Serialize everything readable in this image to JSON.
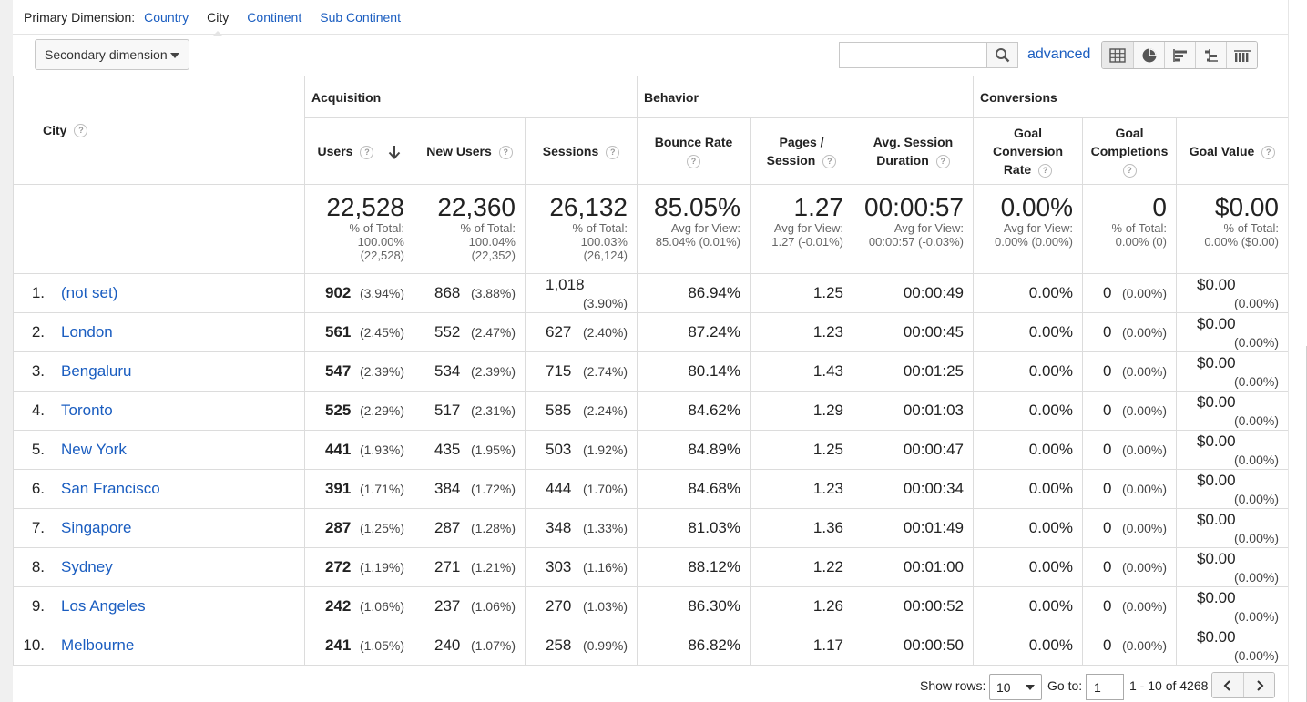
{
  "dimension_bar": {
    "label": "Primary Dimension:",
    "options": [
      "Country",
      "City",
      "Continent",
      "Sub Continent"
    ],
    "selected": "City"
  },
  "toolbar": {
    "secondary_dimension": "Secondary dimension",
    "search_value": "",
    "advanced_label": "advanced",
    "view_icons": [
      "table-view-icon",
      "pie-view-icon",
      "performance-view-icon",
      "comparison-view-icon",
      "pivot-view-icon"
    ]
  },
  "table": {
    "groups": {
      "acquisition": "Acquisition",
      "behavior": "Behavior",
      "conversions": "Conversions"
    },
    "columns": {
      "city": "City",
      "users": "Users",
      "new_users": "New Users",
      "sessions": "Sessions",
      "bounce_rate_1": "Bounce Rate",
      "pages_1": "Pages /",
      "pages_2": "Session",
      "duration_1": "Avg. Session",
      "duration_2": "Duration",
      "gcr_1": "Goal",
      "gcr_2": "Conversion",
      "gcr_3": "Rate",
      "gc_1": "Goal",
      "gc_2": "Completions",
      "goal_value": "Goal Value"
    },
    "totals": {
      "users": {
        "big": "22,528",
        "l1": "% of Total:",
        "l2": "100.00%",
        "l3": "(22,528)"
      },
      "new_users": {
        "big": "22,360",
        "l1": "% of Total:",
        "l2": "100.04%",
        "l3": "(22,352)"
      },
      "sessions": {
        "big": "26,132",
        "l1": "% of Total:",
        "l2": "100.03%",
        "l3": "(26,124)"
      },
      "bounce_rate": {
        "big": "85.05%",
        "l1": "Avg for View:",
        "l2": "85.04% (0.01%)"
      },
      "pages": {
        "big": "1.27",
        "l1": "Avg for View:",
        "l2": "1.27 (-0.01%)"
      },
      "duration": {
        "big": "00:00:57",
        "l1": "Avg for View:",
        "l2": "00:00:57 (-0.03%)"
      },
      "gcr": {
        "big": "0.00%",
        "l1": "Avg for View:",
        "l2": "0.00% (0.00%)"
      },
      "gc": {
        "big": "0",
        "l1": "% of Total:",
        "l2": "0.00% (0)"
      },
      "goal_value": {
        "big": "$0.00",
        "l1": "% of Total:",
        "l2": "0.00% ($0.00)"
      }
    },
    "rows": [
      {
        "idx": "1.",
        "city": "(not set)",
        "users": "902",
        "users_pct": "(3.94%)",
        "new_users": "868",
        "new_users_pct": "(3.88%)",
        "sessions": "1,018",
        "sessions_pct": "(3.90%)",
        "bounce": "86.94%",
        "pages": "1.25",
        "duration": "00:00:49",
        "gcr": "0.00%",
        "gc": "0",
        "gc_pct": "(0.00%)",
        "gv": "$0.00",
        "gv_pct": "(0.00%)"
      },
      {
        "idx": "2.",
        "city": "London",
        "users": "561",
        "users_pct": "(2.45%)",
        "new_users": "552",
        "new_users_pct": "(2.47%)",
        "sessions": "627",
        "sessions_pct": "(2.40%)",
        "bounce": "87.24%",
        "pages": "1.23",
        "duration": "00:00:45",
        "gcr": "0.00%",
        "gc": "0",
        "gc_pct": "(0.00%)",
        "gv": "$0.00",
        "gv_pct": "(0.00%)"
      },
      {
        "idx": "3.",
        "city": "Bengaluru",
        "users": "547",
        "users_pct": "(2.39%)",
        "new_users": "534",
        "new_users_pct": "(2.39%)",
        "sessions": "715",
        "sessions_pct": "(2.74%)",
        "bounce": "80.14%",
        "pages": "1.43",
        "duration": "00:01:25",
        "gcr": "0.00%",
        "gc": "0",
        "gc_pct": "(0.00%)",
        "gv": "$0.00",
        "gv_pct": "(0.00%)"
      },
      {
        "idx": "4.",
        "city": "Toronto",
        "users": "525",
        "users_pct": "(2.29%)",
        "new_users": "517",
        "new_users_pct": "(2.31%)",
        "sessions": "585",
        "sessions_pct": "(2.24%)",
        "bounce": "84.62%",
        "pages": "1.29",
        "duration": "00:01:03",
        "gcr": "0.00%",
        "gc": "0",
        "gc_pct": "(0.00%)",
        "gv": "$0.00",
        "gv_pct": "(0.00%)"
      },
      {
        "idx": "5.",
        "city": "New York",
        "users": "441",
        "users_pct": "(1.93%)",
        "new_users": "435",
        "new_users_pct": "(1.95%)",
        "sessions": "503",
        "sessions_pct": "(1.92%)",
        "bounce": "84.89%",
        "pages": "1.25",
        "duration": "00:00:47",
        "gcr": "0.00%",
        "gc": "0",
        "gc_pct": "(0.00%)",
        "gv": "$0.00",
        "gv_pct": "(0.00%)"
      },
      {
        "idx": "6.",
        "city": "San Francisco",
        "users": "391",
        "users_pct": "(1.71%)",
        "new_users": "384",
        "new_users_pct": "(1.72%)",
        "sessions": "444",
        "sessions_pct": "(1.70%)",
        "bounce": "84.68%",
        "pages": "1.23",
        "duration": "00:00:34",
        "gcr": "0.00%",
        "gc": "0",
        "gc_pct": "(0.00%)",
        "gv": "$0.00",
        "gv_pct": "(0.00%)"
      },
      {
        "idx": "7.",
        "city": "Singapore",
        "users": "287",
        "users_pct": "(1.25%)",
        "new_users": "287",
        "new_users_pct": "(1.28%)",
        "sessions": "348",
        "sessions_pct": "(1.33%)",
        "bounce": "81.03%",
        "pages": "1.36",
        "duration": "00:01:49",
        "gcr": "0.00%",
        "gc": "0",
        "gc_pct": "(0.00%)",
        "gv": "$0.00",
        "gv_pct": "(0.00%)"
      },
      {
        "idx": "8.",
        "city": "Sydney",
        "users": "272",
        "users_pct": "(1.19%)",
        "new_users": "271",
        "new_users_pct": "(1.21%)",
        "sessions": "303",
        "sessions_pct": "(1.16%)",
        "bounce": "88.12%",
        "pages": "1.22",
        "duration": "00:01:00",
        "gcr": "0.00%",
        "gc": "0",
        "gc_pct": "(0.00%)",
        "gv": "$0.00",
        "gv_pct": "(0.00%)"
      },
      {
        "idx": "9.",
        "city": "Los Angeles",
        "users": "242",
        "users_pct": "(1.06%)",
        "new_users": "237",
        "new_users_pct": "(1.06%)",
        "sessions": "270",
        "sessions_pct": "(1.03%)",
        "bounce": "86.30%",
        "pages": "1.26",
        "duration": "00:00:52",
        "gcr": "0.00%",
        "gc": "0",
        "gc_pct": "(0.00%)",
        "gv": "$0.00",
        "gv_pct": "(0.00%)"
      },
      {
        "idx": "10.",
        "city": "Melbourne",
        "users": "241",
        "users_pct": "(1.05%)",
        "new_users": "240",
        "new_users_pct": "(1.07%)",
        "sessions": "258",
        "sessions_pct": "(0.99%)",
        "bounce": "86.82%",
        "pages": "1.17",
        "duration": "00:00:50",
        "gcr": "0.00%",
        "gc": "0",
        "gc_pct": "(0.00%)",
        "gv": "$0.00",
        "gv_pct": "(0.00%)"
      }
    ]
  },
  "footer": {
    "show_rows_label": "Show rows:",
    "show_rows_value": "10",
    "goto_label": "Go to:",
    "goto_value": "1",
    "range": "1 - 10 of 4268"
  },
  "colors": {
    "link": "#1a5dc0",
    "border": "#dcdcdc"
  }
}
